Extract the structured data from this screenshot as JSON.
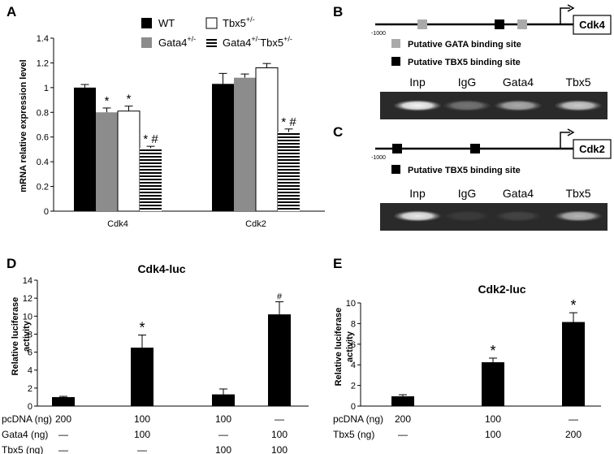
{
  "panels": {
    "A": {
      "letter": "A",
      "chart_data": {
        "type": "bar",
        "ylabel": "mRNA relative expression level",
        "ylim": [
          0,
          1.4
        ],
        "yticks": [
          "0",
          "0.2",
          "0.4",
          "0.6",
          "0.8",
          "1",
          "1.2",
          "1.4"
        ],
        "categories": [
          "Cdk4",
          "Cdk2"
        ],
        "legend": [
          {
            "text": "WT",
            "sup": ""
          },
          {
            "text": "Tbx5",
            "sup": "+/-"
          },
          {
            "text": "Gata4",
            "sup": "+/-"
          },
          {
            "text": "Gata4",
            "sup": "+/-",
            "text2": "Tbx5",
            "sup2": "+/-"
          }
        ],
        "legend_placement": "top",
        "series": [
          {
            "values": [
              1.0,
              1.03
            ],
            "errors": [
              0.025,
              0.085
            ],
            "color": "#000000",
            "marks": [
              "",
              ""
            ]
          },
          {
            "values": [
              0.8,
              1.08
            ],
            "errors": [
              0.035,
              0.03
            ],
            "color": "#8c8c8c",
            "marks": [
              "*",
              ""
            ]
          },
          {
            "values": [
              0.81,
              1.16
            ],
            "errors": [
              0.04,
              0.035
            ],
            "color": "#ffffff",
            "marks": [
              "*",
              ""
            ]
          },
          {
            "values": [
              0.51,
              0.64
            ],
            "errors": [
              0.015,
              0.025
            ],
            "color": "striped",
            "marks": [
              "* #",
              "* #"
            ]
          }
        ]
      }
    },
    "B": {
      "letter": "B",
      "coord": "-1000",
      "gene": "Cdk4",
      "gata_color": "#aaaaaa",
      "tbx_color": "#000000",
      "key": [
        "Putative GATA binding site",
        "Putative TBX5 binding site"
      ],
      "lanes": [
        "Inp",
        "IgG",
        "Gata4",
        "Tbx5"
      ],
      "band_intensity": [
        0.95,
        0.35,
        0.6,
        0.75
      ]
    },
    "C": {
      "letter": "C",
      "coord": "-1000",
      "gene": "Cdk2",
      "key": [
        "Putative TBX5 binding site"
      ],
      "lanes": [
        "Inp",
        "IgG",
        "Gata4",
        "Tbx5"
      ],
      "band_intensity": [
        0.9,
        0.08,
        0.12,
        0.65
      ]
    },
    "D": {
      "letter": "D",
      "chart_data": {
        "type": "bar",
        "title": "Cdk4-luc",
        "ylabel": "Relative luciferase activity",
        "ylabel_lines": [
          "Relative luciferase",
          "activity"
        ],
        "ylim": [
          0,
          14
        ],
        "yticks": [
          "0",
          "2",
          "4",
          "6",
          "8",
          "10",
          "12",
          "14"
        ],
        "values": [
          1.0,
          6.5,
          1.3,
          10.2
        ],
        "errors": [
          0.08,
          1.4,
          0.6,
          1.4
        ],
        "marks": [
          "",
          "*",
          "",
          "#"
        ],
        "conditions": [
          {
            "label": "pcDNA (ng)",
            "values": [
              "200",
              "100",
              "100",
              "—"
            ]
          },
          {
            "label": "Gata4 (ng)",
            "values": [
              "—",
              "100",
              "—",
              "100"
            ]
          },
          {
            "label": "Tbx5 (ng)",
            "values": [
              "—",
              "—",
              "100",
              "100"
            ]
          }
        ]
      }
    },
    "E": {
      "letter": "E",
      "chart_data": {
        "type": "bar",
        "title": "Cdk2-luc",
        "ylabel": "Relative luciferase activity",
        "ylabel_lines": [
          "Relative luciferase",
          "activity"
        ],
        "ylim": [
          0,
          10
        ],
        "yticks": [
          "0",
          "2",
          "4",
          "6",
          "8",
          "10"
        ],
        "values": [
          0.95,
          4.25,
          8.15
        ],
        "errors": [
          0.15,
          0.4,
          0.9
        ],
        "marks": [
          "",
          "*",
          "*"
        ],
        "conditions": [
          {
            "label": "pcDNA (ng)",
            "values": [
              "200",
              "100",
              "—"
            ]
          },
          {
            "label": "Tbx5 (ng)",
            "values": [
              "—",
              "100",
              "200"
            ]
          }
        ]
      }
    }
  }
}
